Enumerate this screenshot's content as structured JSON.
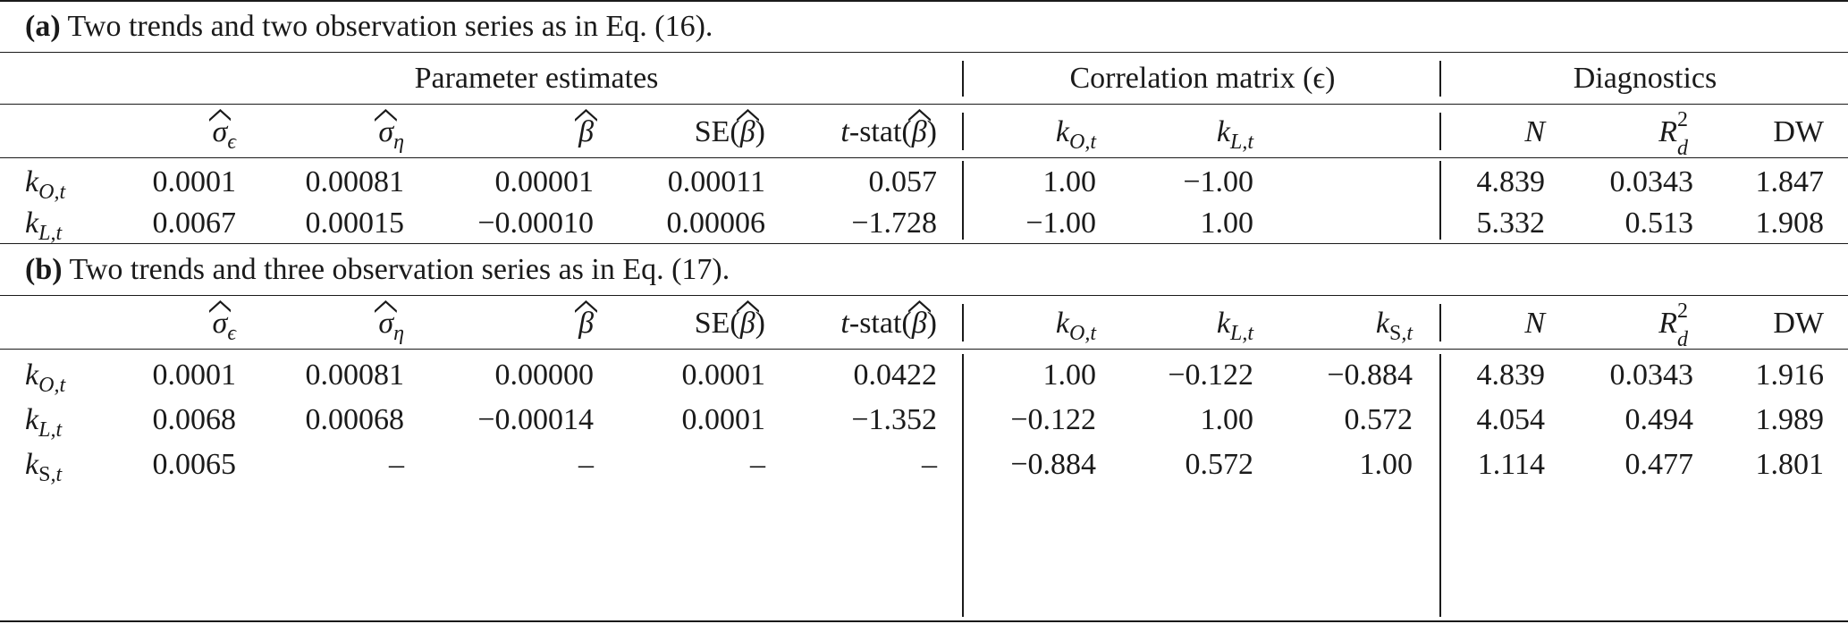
{
  "panel_a": {
    "caption_label": "(a)",
    "caption_text": " Two trends and two observation series as in Eq. (16).",
    "group_headers": {
      "params": "Parameter estimates",
      "corr": "Correlation matrix (ϵ)",
      "diag": "Diagnostics"
    },
    "rows": [
      {
        "label": "O",
        "cells": [
          "0.0001",
          "0.00081",
          "0.00001",
          "0.00011",
          "0.057",
          "1.00",
          "−1.00",
          "",
          "4.839",
          "0.0343",
          "1.847"
        ]
      },
      {
        "label": "L",
        "cells": [
          "0.0067",
          "0.00015",
          "−0.00010",
          "0.00006",
          "−1.728",
          "−1.00",
          "1.00",
          "",
          "5.332",
          "0.513",
          "1.908"
        ]
      }
    ]
  },
  "panel_b": {
    "caption_label": "(b)",
    "caption_text": " Two trends and three observation series as in Eq. (17).",
    "rows": [
      {
        "label": "O",
        "cells": [
          "0.0001",
          "0.00081",
          "0.00000",
          "0.0001",
          "0.0422",
          "1.00",
          "−0.122",
          "−0.884",
          "4.839",
          "0.0343",
          "1.916"
        ]
      },
      {
        "label": "L",
        "cells": [
          "0.0068",
          "0.00068",
          "−0.00014",
          "0.0001",
          "−1.352",
          "−0.122",
          "1.00",
          "0.572",
          "4.054",
          "0.494",
          "1.989"
        ]
      },
      {
        "label": "S",
        "cells": [
          "0.0065",
          "–",
          "–",
          "–",
          "–",
          "−0.884",
          "0.572",
          "1.00",
          "1.114",
          "0.477",
          "1.801"
        ]
      }
    ]
  },
  "headers": {
    "sigma": "σ",
    "eps": "ϵ",
    "eta": "η",
    "beta": "β",
    "se": "SE(",
    "tstat_t": "t",
    "tstat_rest": "-stat(",
    "close": ")",
    "k": "k",
    "sub_O": "O",
    "sub_L": "L",
    "sub_S": "S",
    "sub_t": ",t",
    "N": "N",
    "R": "R",
    "R_sup": "2",
    "R_sub": "d",
    "DW": "DW"
  }
}
